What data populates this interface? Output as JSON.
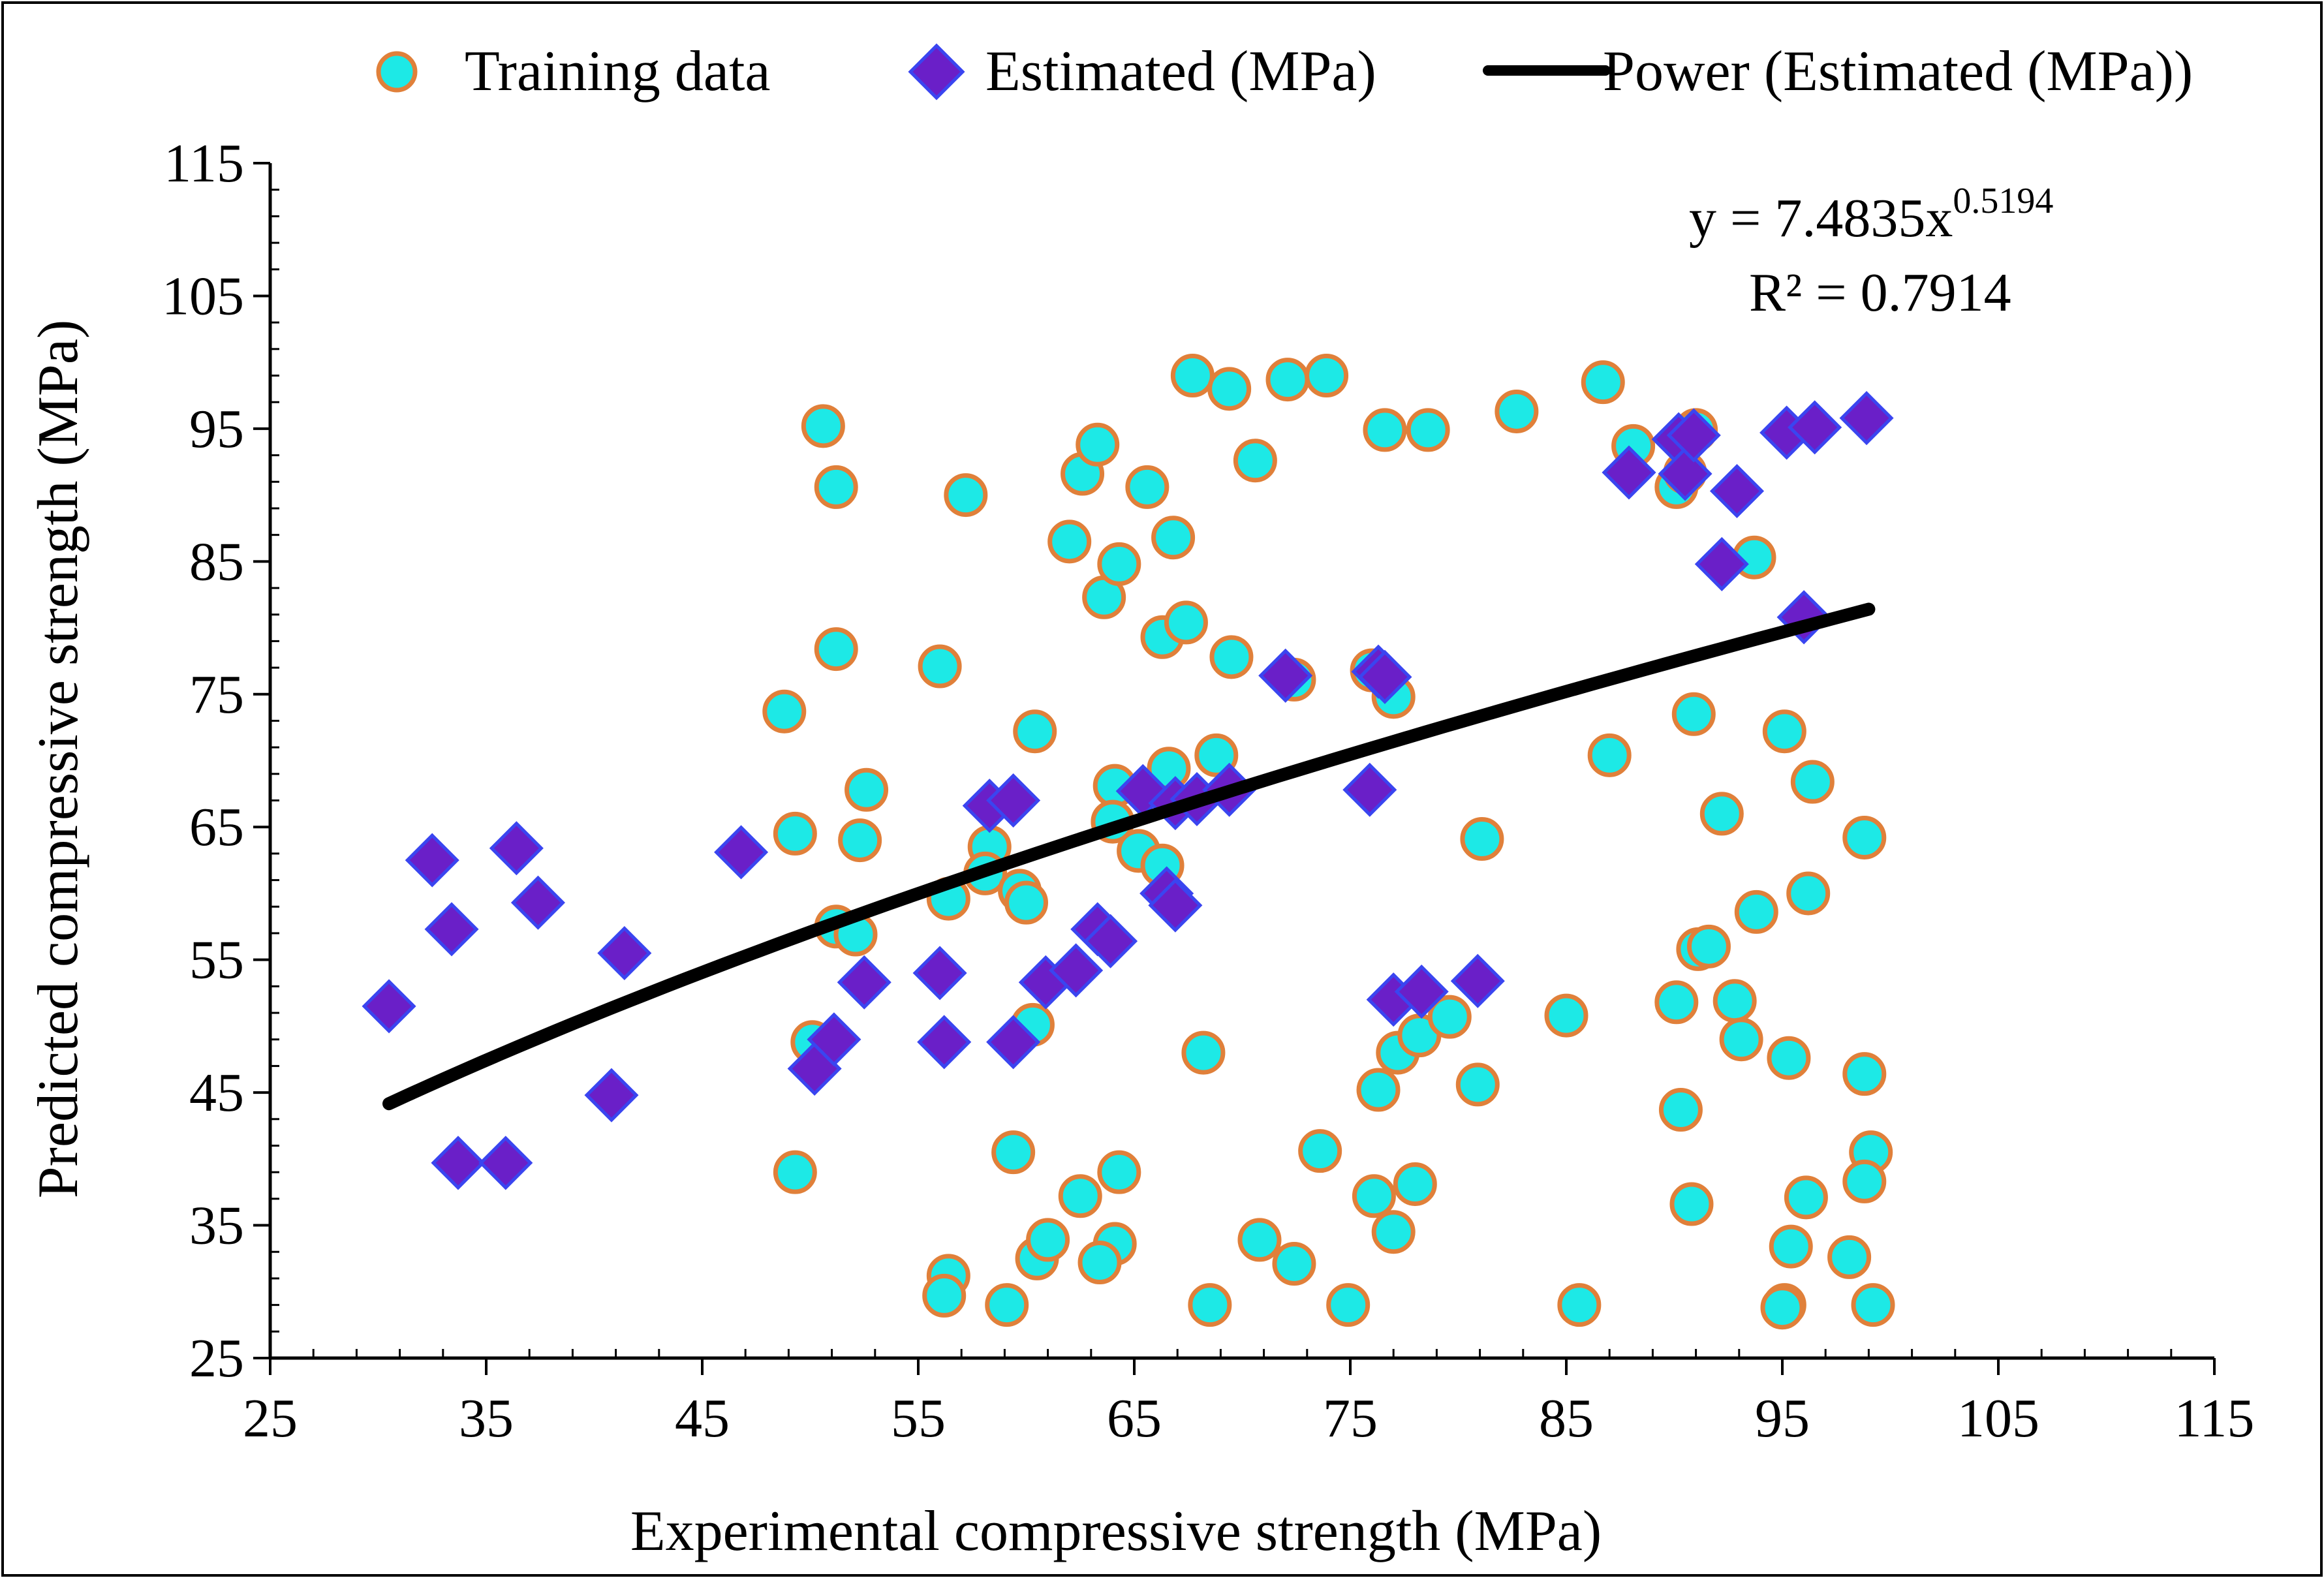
{
  "chart_data": {
    "type": "scatter",
    "title": "",
    "xlabel": "Experimental compressive strength (MPa)",
    "ylabel": "Predicted compressive strength (MPa)",
    "xlim": [
      25,
      115
    ],
    "ylim": [
      25,
      115
    ],
    "x_ticks": [
      25,
      35,
      45,
      55,
      65,
      75,
      85,
      95,
      105,
      115
    ],
    "y_ticks": [
      25,
      35,
      45,
      55,
      65,
      75,
      85,
      95,
      105,
      115
    ],
    "legend_position": "top",
    "colors": {
      "training_fill": "#1de9e6",
      "training_edge": "#e0803a",
      "estimated_fill": "#6a1fc8",
      "estimated_edge": "#3a45f0",
      "trendline": "#000000"
    },
    "legend": [
      "Training data",
      "Estimated (MPa)",
      "Power (Estimated (MPa))"
    ],
    "trendline": {
      "type": "power",
      "a": 7.4835,
      "b": 0.5194,
      "x_range": [
        30.5,
        99
      ],
      "equation_prefix": "y = 7.4835x",
      "equation_exponent": "0.5194",
      "r_squared_label": "R² = 0.7914"
    },
    "series": [
      {
        "name": "Training data",
        "marker": "circle",
        "points": [
          [
            50.6,
            95.2
          ],
          [
            51.2,
            90.6
          ],
          [
            57.2,
            90
          ],
          [
            51.2,
            78.4
          ],
          [
            56,
            77.1
          ],
          [
            48.8,
            73.7
          ],
          [
            52.6,
            67.8
          ],
          [
            49.3,
            64.5
          ],
          [
            52.3,
            64
          ],
          [
            51.2,
            57.5
          ],
          [
            52.1,
            56.9
          ],
          [
            50.1,
            48.8
          ],
          [
            49.3,
            39
          ],
          [
            56.4,
            31.2
          ],
          [
            56.2,
            29.7
          ],
          [
            59.1,
            29
          ],
          [
            58.3,
            63.5
          ],
          [
            58.1,
            61.5
          ],
          [
            59.7,
            60.2
          ],
          [
            56.4,
            59.6
          ],
          [
            60,
            59.3
          ],
          [
            60.3,
            50.1
          ],
          [
            59.4,
            40.5
          ],
          [
            60.5,
            32.5
          ],
          [
            61,
            33.9
          ],
          [
            60.4,
            72.2
          ],
          [
            62,
            86.5
          ],
          [
            62.6,
            91.6
          ],
          [
            63.3,
            93.8
          ],
          [
            63.6,
            82.3
          ],
          [
            64.3,
            84.8
          ],
          [
            64.1,
            68.1
          ],
          [
            64,
            65.4
          ],
          [
            65.2,
            63.2
          ],
          [
            66.3,
            62.1
          ],
          [
            66.6,
            69.4
          ],
          [
            65.6,
            90.6
          ],
          [
            66.8,
            86.8
          ],
          [
            66.3,
            79.3
          ],
          [
            67.4,
            80.4
          ],
          [
            67.7,
            99
          ],
          [
            69.4,
            98
          ],
          [
            69.5,
            77.8
          ],
          [
            68.8,
            70.4
          ],
          [
            70.6,
            92.6
          ],
          [
            68.2,
            48
          ],
          [
            68.5,
            29
          ],
          [
            62.5,
            37.2
          ],
          [
            64.3,
            39
          ],
          [
            64.1,
            33.6
          ],
          [
            63.4,
            32.2
          ],
          [
            70.8,
            33.9
          ],
          [
            72.1,
            98.7
          ],
          [
            73.9,
            99
          ],
          [
            72.4,
            76.1
          ],
          [
            72.4,
            32.1
          ],
          [
            73.6,
            40.6
          ],
          [
            74.9,
            29
          ],
          [
            76,
            76.8
          ],
          [
            76.6,
            94.9
          ],
          [
            77,
            74.8
          ],
          [
            78.6,
            94.9
          ],
          [
            76.3,
            45.2
          ],
          [
            76.1,
            37.2
          ],
          [
            77.2,
            48
          ],
          [
            78.2,
            49.3
          ],
          [
            79.6,
            50.7
          ],
          [
            78,
            38.1
          ],
          [
            77,
            34.5
          ],
          [
            82.7,
            96.3
          ],
          [
            80.9,
            45.6
          ],
          [
            81.1,
            64.1
          ],
          [
            85,
            50.8
          ],
          [
            85.6,
            29
          ],
          [
            86.7,
            98.5
          ],
          [
            87,
            70.4
          ],
          [
            88.1,
            93.7
          ],
          [
            90.1,
            90.6
          ],
          [
            90.5,
            91.7
          ],
          [
            91,
            94.9
          ],
          [
            90.9,
            73.5
          ],
          [
            93.7,
            85.3
          ],
          [
            91.1,
            55.8
          ],
          [
            91.6,
            56
          ],
          [
            92.2,
            66
          ],
          [
            90.1,
            51.8
          ],
          [
            92.8,
            51.9
          ],
          [
            93.1,
            49
          ],
          [
            93.8,
            58.6
          ],
          [
            90.3,
            43.7
          ],
          [
            90.8,
            36.6
          ],
          [
            95.1,
            72.2
          ],
          [
            96.4,
            68.4
          ],
          [
            96.2,
            60
          ],
          [
            95.3,
            47.6
          ],
          [
            95.4,
            33.4
          ],
          [
            95.1,
            29
          ],
          [
            95,
            28.8
          ],
          [
            96.1,
            37.1
          ],
          [
            98.1,
            32.6
          ],
          [
            98.8,
            64.2
          ],
          [
            98.8,
            46.4
          ],
          [
            99.1,
            40.5
          ],
          [
            98.8,
            38.3
          ],
          [
            99.2,
            29
          ]
        ]
      },
      {
        "name": "Estimated (MPa)",
        "marker": "diamond",
        "points": [
          [
            30.5,
            51.5
          ],
          [
            32.5,
            62.5
          ],
          [
            33.4,
            57.3
          ],
          [
            33.7,
            39.7
          ],
          [
            35.9,
            39.7
          ],
          [
            36.4,
            63.4
          ],
          [
            37.4,
            59.3
          ],
          [
            40.8,
            44.8
          ],
          [
            41.4,
            55.5
          ],
          [
            46.8,
            63.1
          ],
          [
            50.2,
            46.8
          ],
          [
            51.1,
            49
          ],
          [
            52.5,
            53.3
          ],
          [
            56,
            54
          ],
          [
            56.2,
            48.8
          ],
          [
            58.3,
            66.6
          ],
          [
            59.4,
            67
          ],
          [
            59.4,
            48.8
          ],
          [
            60.9,
            53.3
          ],
          [
            62.3,
            54.2
          ],
          [
            63.3,
            57.3
          ],
          [
            63.9,
            56.4
          ],
          [
            65.4,
            67.7
          ],
          [
            66.5,
            60
          ],
          [
            66.9,
            59.1
          ],
          [
            66.9,
            66.8
          ],
          [
            67.9,
            67.1
          ],
          [
            69.4,
            67.8
          ],
          [
            72,
            76.4
          ],
          [
            75.9,
            67.8
          ],
          [
            76.3,
            76.7
          ],
          [
            76.6,
            76.3
          ],
          [
            77,
            52
          ],
          [
            78.3,
            52.6
          ],
          [
            80.9,
            53.4
          ],
          [
            87.9,
            91.7
          ],
          [
            90.2,
            94.2
          ],
          [
            90.5,
            91.6
          ],
          [
            90.9,
            94.5
          ],
          [
            92.2,
            84.8
          ],
          [
            92.9,
            90.3
          ],
          [
            95.2,
            94.7
          ],
          [
            96,
            80.8
          ],
          [
            96.5,
            95.1
          ],
          [
            98.9,
            95.8
          ]
        ]
      }
    ]
  }
}
